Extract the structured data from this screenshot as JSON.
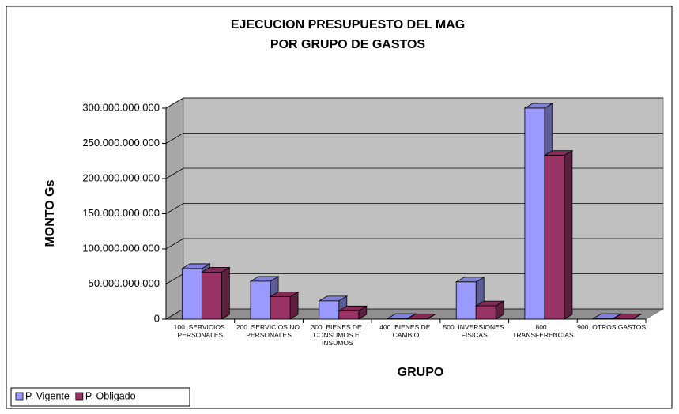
{
  "chart_data": {
    "type": "bar3d",
    "title": "EJECUCION PRESUPUESTO DEL MAG",
    "subtitle": "POR GRUPO DE GASTOS",
    "y_label": "MONTO Gs",
    "x_label": "GRUPO",
    "categories": [
      "100. SERVICIOS PERSONALES",
      "200. SERVICIOS NO PERSONALES",
      "300. BIENES DE CONSUMOS E INSUMOS",
      "400. BIENES DE CAMBIO",
      "500. INVERSIONES FISICAS",
      "800. TRANSFERENCIAS",
      "900. OTROS GASTOS"
    ],
    "series": [
      {
        "name": "P. Vigente",
        "color": "#9999ff",
        "values": [
          72000000000,
          54000000000,
          26000000000,
          1000000000,
          53000000000,
          300000000000,
          1000000000
        ]
      },
      {
        "name": "P. Obligado",
        "color": "#993366",
        "values": [
          67000000000,
          32000000000,
          12000000000,
          500000000,
          19000000000,
          233000000000,
          500000000
        ]
      }
    ],
    "ylim": [
      0,
      300000000000
    ],
    "yticks": [
      0,
      {
        "value": 50000000000,
        "label": "50.000.000.000"
      },
      {
        "value": 100000000000,
        "label": "100.000.000.000"
      },
      {
        "value": 150000000000,
        "label": "150.000.000.000"
      },
      {
        "value": 200000000000,
        "label": "200.000.000.000"
      },
      {
        "value": 250000000000,
        "label": "250.000.000.000"
      },
      {
        "value": 300000000000,
        "label": "300.000.000.000"
      }
    ],
    "grid": true,
    "legend": "bottom-left"
  }
}
